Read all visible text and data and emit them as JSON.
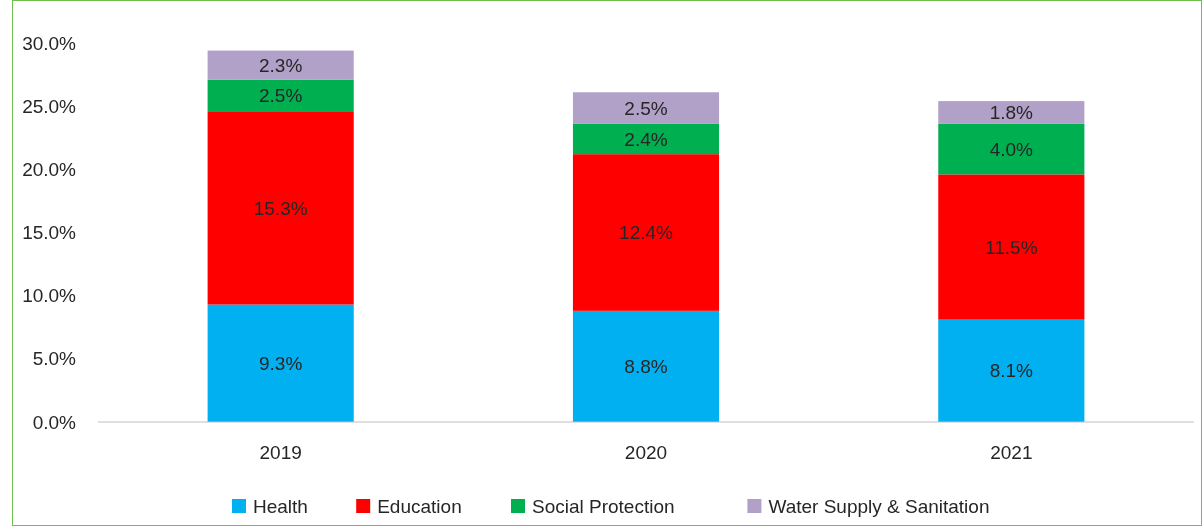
{
  "chart_data": {
    "type": "bar",
    "stacked": true,
    "categories": [
      "2019",
      "2020",
      "2021"
    ],
    "series": [
      {
        "name": "Health",
        "color": "#00b0f0",
        "values": [
          9.3,
          8.8,
          8.1
        ],
        "value_labels": [
          "9.3%",
          "8.8%",
          "8.1%"
        ]
      },
      {
        "name": "Education",
        "color": "#ff0000",
        "values": [
          15.3,
          12.4,
          11.5
        ],
        "value_labels": [
          "15.3%",
          "12.4%",
          "11.5%"
        ]
      },
      {
        "name": "Social Protection",
        "color": "#00b050",
        "values": [
          2.5,
          2.4,
          4.0
        ],
        "value_labels": [
          "2.5%",
          "2.4%",
          "4.0%"
        ]
      },
      {
        "name": "Water Supply & Sanitation",
        "color": "#b1a0c7",
        "values": [
          2.3,
          2.5,
          1.8
        ],
        "value_labels": [
          "2.3%",
          "2.5%",
          "1.8%"
        ]
      }
    ],
    "ylim": [
      0,
      30
    ],
    "yticks": [
      {
        "value": 0,
        "label": "0.0%"
      },
      {
        "value": 5,
        "label": "5.0%"
      },
      {
        "value": 10,
        "label": "10.0%"
      },
      {
        "value": 15,
        "label": "15.0%"
      },
      {
        "value": 20,
        "label": "20.0%"
      },
      {
        "value": 25,
        "label": "25.0%"
      },
      {
        "value": 30,
        "label": "30.0%"
      }
    ],
    "grid": false,
    "legend": "bottom"
  }
}
